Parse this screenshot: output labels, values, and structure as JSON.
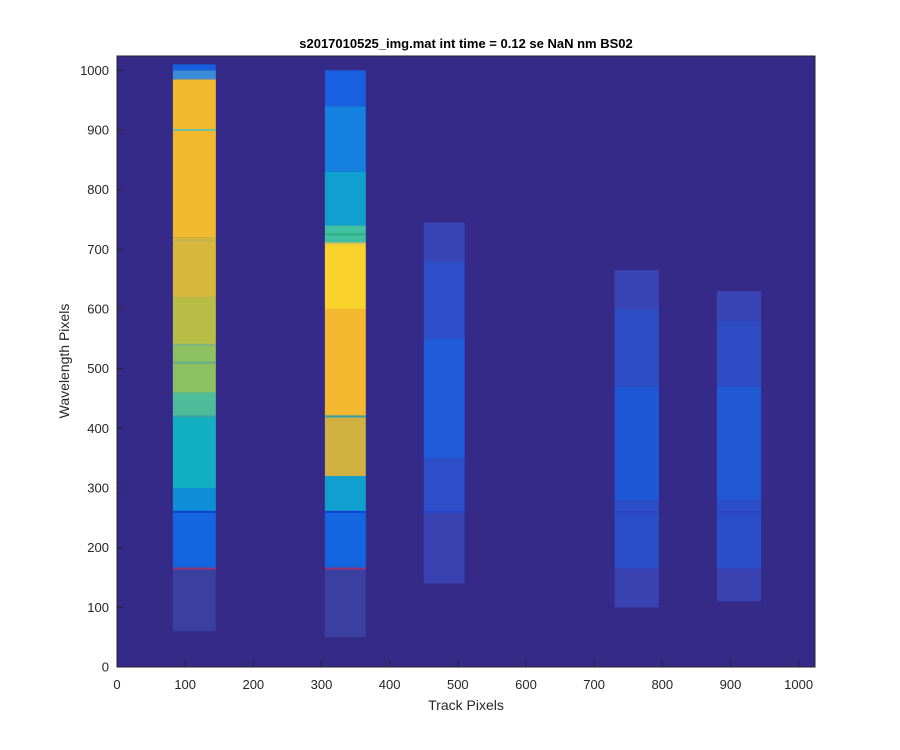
{
  "chart_data": {
    "type": "heatmap",
    "title": "s2017010525_img.mat int time = 0.12 se  NaN nm BS02",
    "xlabel": "Track Pixels",
    "ylabel": "Wavelength Pixels",
    "xlim": [
      0,
      1024
    ],
    "ylim": [
      0,
      1024
    ],
    "xticks": [
      0,
      100,
      200,
      300,
      400,
      500,
      600,
      700,
      800,
      900,
      1000
    ],
    "yticks": [
      0,
      100,
      200,
      300,
      400,
      500,
      600,
      700,
      800,
      900,
      1000
    ],
    "grid": false,
    "colormap": "parula",
    "background_color": "#352a87",
    "colors": {
      "dark_blue": "#352a87",
      "blue": "#1569e0",
      "teal": "#10a8c8",
      "green_teal": "#3cbda0",
      "yellow_green": "#a6c040",
      "orange_yellow": "#f0b830",
      "yellow": "#f9d72a",
      "faint_blue": "#3a47b8"
    },
    "bands": [
      {
        "x_range": [
          82,
          145
        ],
        "y_range": [
          60,
          1010
        ],
        "segments": [
          {
            "y0": 60,
            "y1": 165,
            "color": "#3a3fa0"
          },
          {
            "y0": 165,
            "y1": 260,
            "color": "#1465e0"
          },
          {
            "y0": 260,
            "y1": 300,
            "color": "#0f8fd8"
          },
          {
            "y0": 300,
            "y1": 420,
            "color": "#12afc0"
          },
          {
            "y0": 420,
            "y1": 460,
            "color": "#4cbd98"
          },
          {
            "y0": 460,
            "y1": 540,
            "color": "#8cc060"
          },
          {
            "y0": 540,
            "y1": 620,
            "color": "#b8bd45"
          },
          {
            "y0": 620,
            "y1": 720,
            "color": "#d8b83a"
          },
          {
            "y0": 720,
            "y1": 985,
            "color": "#f2b92f"
          },
          {
            "y0": 985,
            "y1": 1000,
            "color": "#3a8cd8"
          },
          {
            "y0": 1000,
            "y1": 1010,
            "color": "#1560e0"
          }
        ],
        "lines": [
          {
            "y": 165,
            "color": "#9a3070"
          },
          {
            "y": 260,
            "color": "#1040d0"
          },
          {
            "y": 420,
            "color": "#3aa0a0"
          },
          {
            "y": 510,
            "color": "#60b090"
          },
          {
            "y": 540,
            "color": "#80b080"
          },
          {
            "y": 715,
            "color": "#c0b050"
          },
          {
            "y": 900,
            "color": "#70c0a0"
          }
        ]
      },
      {
        "x_range": [
          305,
          365
        ],
        "y_range": [
          50,
          1000
        ],
        "segments": [
          {
            "y0": 50,
            "y1": 165,
            "color": "#3a3fa0"
          },
          {
            "y0": 165,
            "y1": 260,
            "color": "#1465e0"
          },
          {
            "y0": 260,
            "y1": 320,
            "color": "#10a0d0"
          },
          {
            "y0": 320,
            "y1": 420,
            "color": "#d0b040"
          },
          {
            "y0": 420,
            "y1": 600,
            "color": "#f3b830"
          },
          {
            "y0": 600,
            "y1": 710,
            "color": "#f9d22c"
          },
          {
            "y0": 710,
            "y1": 740,
            "color": "#40c0a0"
          },
          {
            "y0": 740,
            "y1": 830,
            "color": "#0fa0d0"
          },
          {
            "y0": 830,
            "y1": 940,
            "color": "#1480e0"
          },
          {
            "y0": 940,
            "y1": 1000,
            "color": "#1860e0"
          }
        ],
        "lines": [
          {
            "y": 165,
            "color": "#9a3070"
          },
          {
            "y": 260,
            "color": "#1040d0"
          },
          {
            "y": 420,
            "color": "#30a0b0"
          },
          {
            "y": 710,
            "color": "#d0c060"
          },
          {
            "y": 725,
            "color": "#30b080"
          }
        ]
      },
      {
        "x_range": [
          450,
          510
        ],
        "y_range": [
          140,
          745
        ],
        "segments": [
          {
            "y0": 140,
            "y1": 260,
            "color": "#3942b0"
          },
          {
            "y0": 260,
            "y1": 350,
            "color": "#2c4ec8"
          },
          {
            "y0": 350,
            "y1": 550,
            "color": "#1f5ad8"
          },
          {
            "y0": 550,
            "y1": 680,
            "color": "#2c4ec8"
          },
          {
            "y0": 680,
            "y1": 745,
            "color": "#3a45b5"
          }
        ],
        "lines": [
          {
            "y": 260,
            "color": "#2448c8"
          }
        ]
      },
      {
        "x_range": [
          730,
          795
        ],
        "y_range": [
          100,
          665
        ],
        "segments": [
          {
            "y0": 100,
            "y1": 165,
            "color": "#3942b0"
          },
          {
            "y0": 165,
            "y1": 280,
            "color": "#2a4ec8"
          },
          {
            "y0": 280,
            "y1": 470,
            "color": "#1f58d6"
          },
          {
            "y0": 470,
            "y1": 600,
            "color": "#2c4cc4"
          },
          {
            "y0": 600,
            "y1": 665,
            "color": "#3a45b5"
          }
        ],
        "lines": [
          {
            "y": 260,
            "color": "#2a44c0"
          }
        ]
      },
      {
        "x_range": [
          880,
          945
        ],
        "y_range": [
          110,
          630
        ],
        "segments": [
          {
            "y0": 110,
            "y1": 165,
            "color": "#3942b0"
          },
          {
            "y0": 165,
            "y1": 280,
            "color": "#2a4ec8"
          },
          {
            "y0": 280,
            "y1": 470,
            "color": "#2158d4"
          },
          {
            "y0": 470,
            "y1": 580,
            "color": "#2d4cc4"
          },
          {
            "y0": 580,
            "y1": 630,
            "color": "#3a45b5"
          }
        ],
        "lines": [
          {
            "y": 260,
            "color": "#2a44c0"
          }
        ]
      }
    ]
  }
}
